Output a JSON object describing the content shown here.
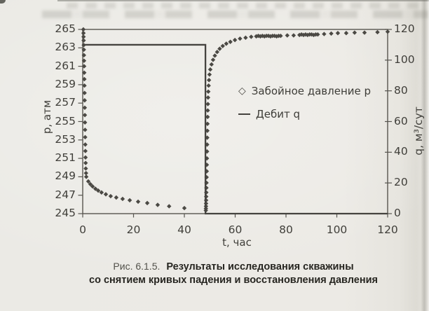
{
  "figure_caption": {
    "prefix": "Рис. 6.1.5.",
    "line1": "Результаты исследования скважины",
    "line2": "со снятием кривых падения и восстановления давления"
  },
  "colors": {
    "frame": "#57554f",
    "q_line": "#45433f",
    "marker": "#4b4944",
    "tick_text": "#403f3a"
  },
  "chart_data": {
    "type": "scatter",
    "title": "",
    "xlabel": "t, час",
    "ylabel_left": "p, атм",
    "ylabel_right": "q, м³/сут",
    "xlim": [
      0,
      120
    ],
    "ylim_left": [
      245,
      265
    ],
    "ylim_right": [
      0,
      120
    ],
    "x_ticks": [
      0,
      20,
      40,
      60,
      80,
      100,
      120
    ],
    "y_ticks_left": [
      265,
      263,
      261,
      259,
      257,
      255,
      253,
      251,
      249,
      247,
      245
    ],
    "y_ticks_right": [
      120,
      100,
      80,
      60,
      40,
      20,
      0
    ],
    "grid": false,
    "legend_position": "inside-right",
    "legend": [
      {
        "marker": "diamond",
        "label": "Забойное давление p"
      },
      {
        "marker": "line",
        "label": "Дебит q"
      }
    ],
    "series": [
      {
        "name": "Забойное давление p",
        "type": "scatter",
        "marker": "diamond",
        "axis": "left",
        "points": [
          [
            0.25,
            265
          ],
          [
            0.29,
            264.6
          ],
          [
            0.33,
            264.2
          ],
          [
            0.37,
            263.8
          ],
          [
            0.41,
            263.3
          ],
          [
            0.45,
            262.8
          ],
          [
            0.49,
            262.2
          ],
          [
            0.53,
            261.6
          ],
          [
            0.57,
            261.0
          ],
          [
            0.61,
            260.3
          ],
          [
            0.65,
            259.6
          ],
          [
            0.69,
            258.9
          ],
          [
            0.73,
            258.1
          ],
          [
            0.77,
            257.3
          ],
          [
            0.81,
            256.5
          ],
          [
            0.85,
            255.7
          ],
          [
            0.89,
            254.9
          ],
          [
            0.93,
            254.1
          ],
          [
            0.97,
            253.3
          ],
          [
            1.01,
            252.5
          ],
          [
            1.05,
            251.8
          ],
          [
            1.1,
            251.1
          ],
          [
            1.15,
            250.5
          ],
          [
            1.2,
            249.9
          ],
          [
            1.3,
            249.4
          ],
          [
            1.4,
            249.0
          ],
          [
            2.2,
            248.5
          ],
          [
            3.0,
            248.2
          ],
          [
            3.9,
            247.95
          ],
          [
            5.0,
            247.7
          ],
          [
            6.1,
            247.5
          ],
          [
            7.4,
            247.3
          ],
          [
            9.1,
            247.1
          ],
          [
            11.0,
            246.9
          ],
          [
            13.2,
            246.75
          ],
          [
            15.7,
            246.6
          ],
          [
            18.5,
            246.45
          ],
          [
            21.8,
            246.3
          ],
          [
            25.4,
            246.15
          ],
          [
            29.5,
            245.95
          ],
          [
            34.0,
            245.8
          ],
          [
            40.0,
            245.6
          ],
          [
            48.45,
            245.35
          ],
          [
            48.48,
            245.55
          ],
          [
            48.51,
            245.8
          ],
          [
            48.54,
            246.1
          ],
          [
            48.57,
            246.45
          ],
          [
            48.6,
            246.85
          ],
          [
            48.64,
            247.3
          ],
          [
            48.68,
            247.8
          ],
          [
            48.72,
            248.35
          ],
          [
            48.76,
            248.95
          ],
          [
            48.8,
            249.6
          ],
          [
            48.84,
            250.3
          ],
          [
            48.88,
            251.0
          ],
          [
            48.92,
            251.75
          ],
          [
            48.96,
            252.5
          ],
          [
            49.0,
            253.25
          ],
          [
            49.05,
            254.0
          ],
          [
            49.1,
            254.75
          ],
          [
            49.15,
            255.5
          ],
          [
            49.2,
            256.2
          ],
          [
            49.26,
            256.9
          ],
          [
            49.33,
            257.6
          ],
          [
            49.42,
            258.25
          ],
          [
            49.55,
            258.9
          ],
          [
            49.7,
            259.5
          ],
          [
            49.9,
            260.1
          ],
          [
            50.2,
            260.65
          ],
          [
            50.7,
            261.2
          ],
          [
            51.3,
            261.7
          ],
          [
            52.0,
            262.15
          ],
          [
            52.9,
            262.55
          ],
          [
            53.9,
            262.9
          ],
          [
            55.1,
            263.2
          ],
          [
            56.5,
            263.45
          ],
          [
            58.1,
            263.65
          ],
          [
            59.9,
            263.85
          ],
          [
            61.9,
            264.0
          ],
          [
            64.1,
            264.1
          ],
          [
            66.3,
            264.2
          ],
          [
            68.3,
            264.25
          ],
          [
            69.1,
            264.3
          ],
          [
            69.9,
            264.25
          ],
          [
            70.7,
            264.3
          ],
          [
            71.5,
            264.25
          ],
          [
            72.3,
            264.3
          ],
          [
            73.1,
            264.3
          ],
          [
            73.9,
            264.25
          ],
          [
            74.7,
            264.3
          ],
          [
            75.5,
            264.3
          ],
          [
            76.3,
            264.25
          ],
          [
            77.1,
            264.3
          ],
          [
            77.9,
            264.3
          ],
          [
            80.5,
            264.35
          ],
          [
            83.0,
            264.35
          ],
          [
            85.3,
            264.4
          ],
          [
            86.1,
            264.45
          ],
          [
            86.9,
            264.4
          ],
          [
            87.7,
            264.45
          ],
          [
            88.5,
            264.4
          ],
          [
            89.3,
            264.45
          ],
          [
            90.1,
            264.45
          ],
          [
            90.9,
            264.4
          ],
          [
            91.7,
            264.45
          ],
          [
            92.5,
            264.45
          ],
          [
            95.0,
            264.5
          ],
          [
            97.8,
            264.55
          ],
          [
            100.4,
            264.6
          ],
          [
            103.7,
            264.6
          ],
          [
            107.0,
            264.65
          ],
          [
            110.9,
            264.65
          ],
          [
            116.0,
            264.7
          ],
          [
            120.0,
            264.75
          ]
        ]
      },
      {
        "name": "Дебит q",
        "type": "line",
        "axis": "right",
        "points": [
          [
            0,
            110
          ],
          [
            48.3,
            110
          ],
          [
            48.3,
            0
          ],
          [
            120,
            0
          ]
        ]
      }
    ]
  }
}
